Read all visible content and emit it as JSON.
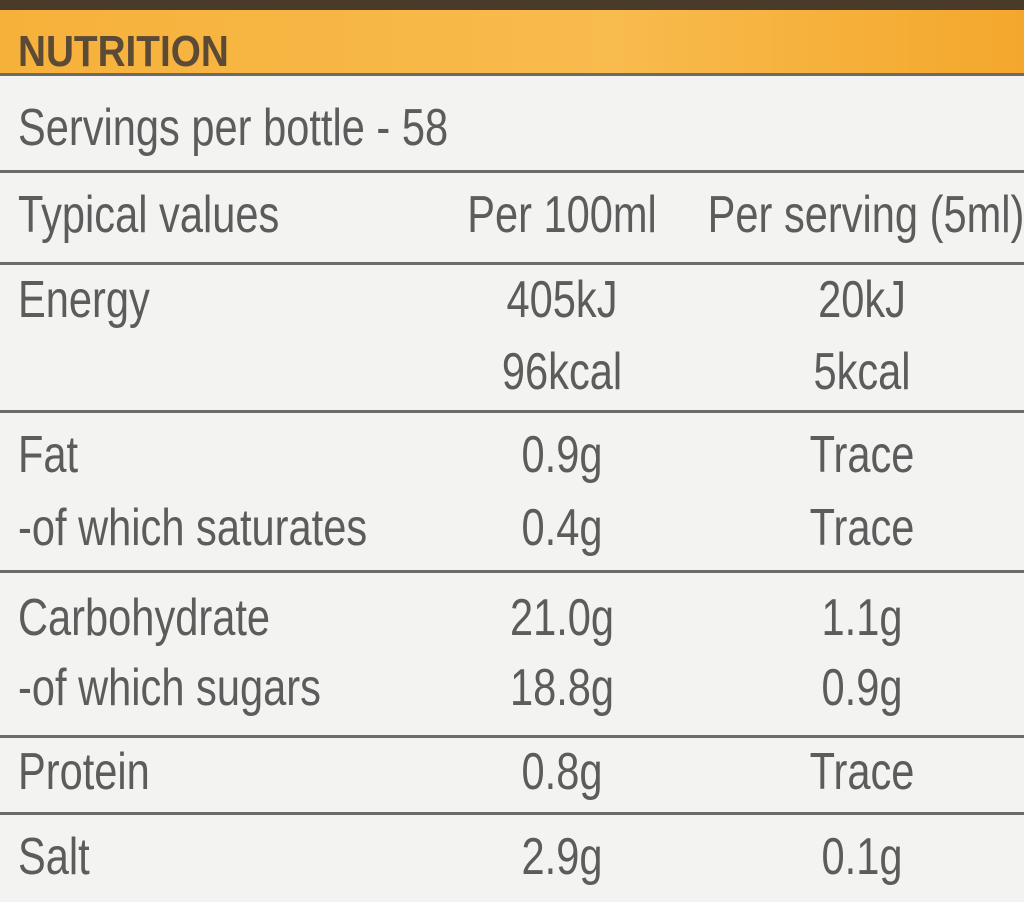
{
  "header": {
    "title": "NUTRITION"
  },
  "servings": "Servings per bottle - 58",
  "table": {
    "columns": [
      "Typical values",
      "Per 100ml",
      "Per serving (5ml)"
    ],
    "groups": [
      [
        {
          "label": "Energy",
          "per_100ml": "405kJ",
          "per_serving": "20kJ"
        },
        {
          "per_100ml": "96kcal",
          "per_serving": "5kcal"
        }
      ],
      [
        {
          "label": "Fat",
          "per_100ml": "0.9g",
          "per_serving": "Trace"
        },
        {
          "label": "-of which saturates",
          "per_100ml": "0.4g",
          "per_serving": "Trace"
        }
      ],
      [
        {
          "label": "Carbohydrate",
          "per_100ml": "21.0g",
          "per_serving": "1.1g"
        },
        {
          "label": "-of which sugars",
          "per_100ml": "18.8g",
          "per_serving": "0.9g"
        }
      ],
      [
        {
          "label": "Protein",
          "per_100ml": "0.8g",
          "per_serving": "Trace"
        }
      ],
      [
        {
          "label": "Salt",
          "per_100ml": "2.9g",
          "per_serving": "0.1g"
        }
      ]
    ]
  }
}
